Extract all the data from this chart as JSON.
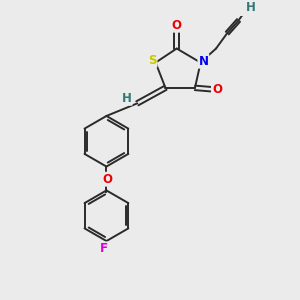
{
  "background_color": "#ebebeb",
  "bond_color": "#2a2a2a",
  "atom_colors": {
    "S": "#c8c800",
    "N": "#0000ee",
    "O": "#ee0000",
    "F": "#dd00dd",
    "H": "#337777",
    "C": "#2a2a2a"
  },
  "figsize": [
    3.0,
    3.0
  ],
  "dpi": 100,
  "lw": 1.4,
  "fontsize": 8.5
}
